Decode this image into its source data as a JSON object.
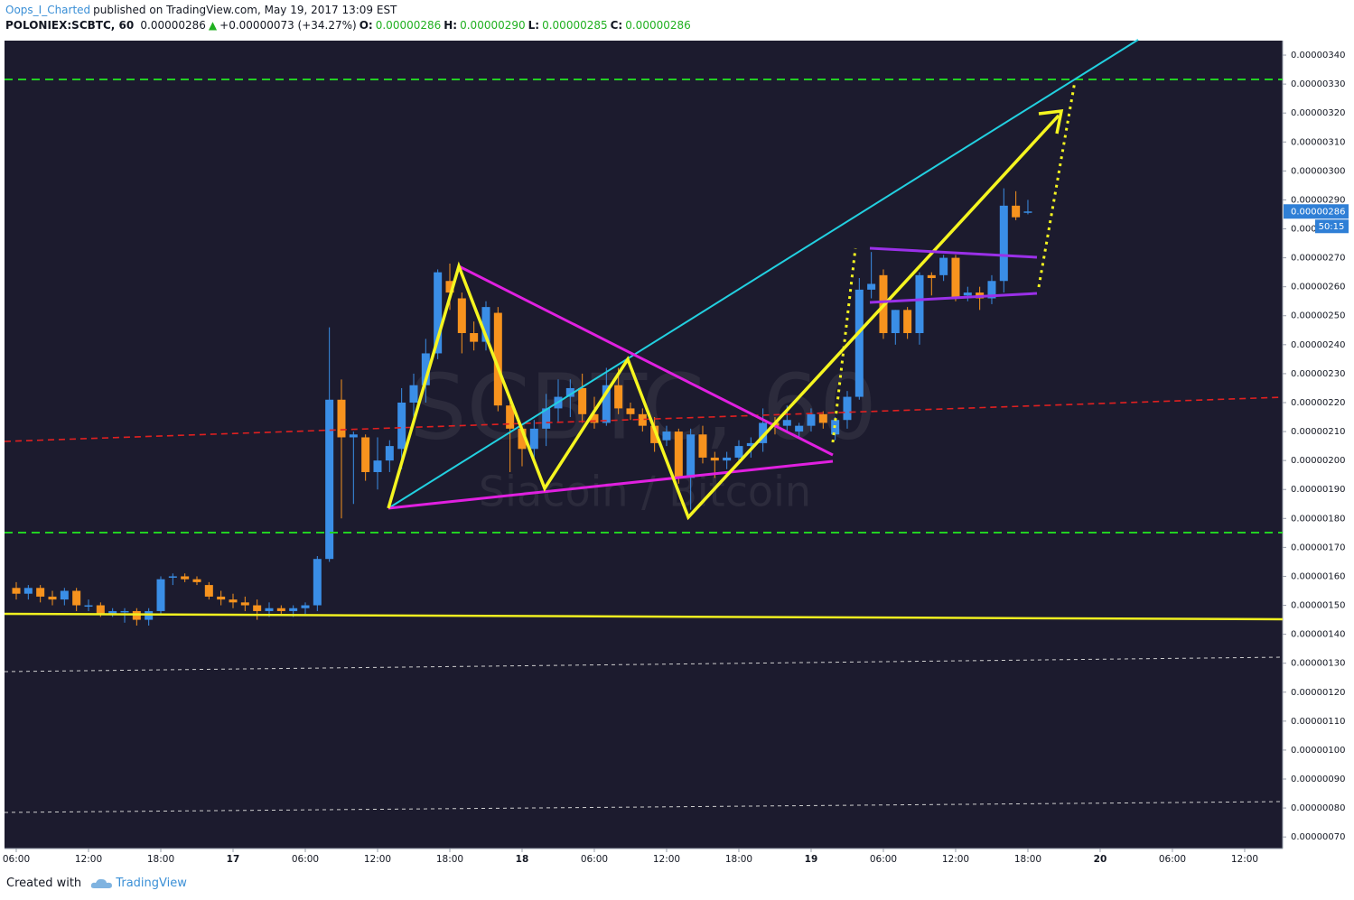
{
  "header": {
    "author": "Oops_I_Charted",
    "published": "published on TradingView.com, May 19, 2017 13:09 EST",
    "symbol": "POLONIEX:SCBTC, 60",
    "last": "0.00000286",
    "arrow": "▲",
    "change": "+0.00000073 (+34.27%)",
    "o_label": "O:",
    "o": "0.00000286",
    "h_label": "H:",
    "h": "0.00000290",
    "l_label": "L:",
    "l": "0.00000285",
    "c_label": "C:",
    "c": "0.00000286"
  },
  "footer": {
    "created": "Created with",
    "brand": "TradingView"
  },
  "chart_data": {
    "type": "candlestick",
    "watermark_symbol": "SCBTC, 60",
    "watermark_name": "Siacoin / Bitcoin",
    "up_color": "#3a8ee6",
    "down_color": "#f7931e",
    "categories": [
      "06:00",
      null,
      null,
      null,
      null,
      null,
      "12:00",
      null,
      null,
      null,
      null,
      null,
      "18:00",
      null,
      null,
      null,
      null,
      null,
      "17",
      null,
      null,
      null,
      null,
      null,
      "06:00",
      null,
      null,
      null,
      null,
      null,
      "12:00",
      null,
      null,
      null,
      null,
      null,
      "18:00",
      null,
      null,
      null,
      null,
      null,
      "18",
      null,
      null,
      null,
      null,
      null,
      "06:00",
      null,
      null,
      null,
      null,
      null,
      "12:00",
      null,
      null,
      null,
      null,
      null,
      "18:00",
      null,
      null,
      null,
      null,
      null,
      "19",
      null,
      null,
      null,
      null,
      null,
      "06:00",
      null,
      null,
      null,
      null,
      null,
      "12:00",
      null,
      null,
      null,
      null,
      null,
      "18:00",
      null,
      null,
      null,
      null,
      null,
      "20",
      null,
      null,
      null,
      null,
      null,
      "06:00",
      null,
      null,
      null,
      null,
      null,
      "12:00",
      null
    ],
    "open": [
      1.56e-06,
      1.54e-06,
      1.56e-06,
      1.53e-06,
      1.52e-06,
      1.55e-06,
      1.5e-06,
      1.5e-06,
      1.47e-06,
      1.48e-06,
      1.48e-06,
      1.45e-06,
      1.48e-06,
      1.6e-06,
      1.6e-06,
      1.59e-06,
      1.57e-06,
      1.53e-06,
      1.52e-06,
      1.51e-06,
      1.5e-06,
      1.48e-06,
      1.49e-06,
      1.48e-06,
      1.49e-06,
      1.5e-06,
      1.66e-06,
      2.21e-06,
      2.08e-06,
      2.08e-06,
      1.96e-06,
      2e-06,
      2.04e-06,
      2.2e-06,
      2.26e-06,
      2.37e-06,
      2.62e-06,
      2.56e-06,
      2.44e-06,
      2.41e-06,
      2.51e-06,
      2.19e-06,
      2.11e-06,
      2.04e-06,
      2.11e-06,
      2.18e-06,
      2.22e-06,
      2.25e-06,
      2.16e-06,
      2.13e-06,
      2.26e-06,
      2.18e-06,
      2.16e-06,
      2.12e-06,
      2.07e-06,
      2.1e-06,
      1.94e-06,
      2.09e-06,
      2.01e-06,
      2e-06,
      2.01e-06,
      2.05e-06,
      2.06e-06,
      2.13e-06,
      2.12e-06,
      2.1e-06,
      2.12e-06,
      2.16e-06,
      2.09e-06,
      2.14e-06,
      2.22e-06,
      2.59e-06,
      2.64e-06,
      2.44e-06,
      2.52e-06,
      2.44e-06,
      2.64e-06,
      2.64e-06,
      2.7e-06,
      2.57e-06,
      2.58e-06,
      2.56e-06,
      2.62e-06,
      2.88e-06,
      2.86e-06,
      null,
      null,
      null,
      null,
      null,
      null,
      null,
      null,
      null,
      null,
      null,
      null,
      null,
      null,
      null,
      null,
      null,
      null,
      null
    ],
    "high": [
      1.58e-06,
      1.57e-06,
      1.57e-06,
      1.55e-06,
      1.56e-06,
      1.56e-06,
      1.52e-06,
      1.51e-06,
      1.49e-06,
      1.49e-06,
      1.49e-06,
      1.49e-06,
      1.6e-06,
      1.61e-06,
      1.61e-06,
      1.6e-06,
      1.58e-06,
      1.55e-06,
      1.54e-06,
      1.53e-06,
      1.52e-06,
      1.51e-06,
      1.5e-06,
      1.5e-06,
      1.51e-06,
      1.67e-06,
      2.46e-06,
      2.28e-06,
      2.1e-06,
      2.09e-06,
      2.08e-06,
      2.07e-06,
      2.25e-06,
      2.3e-06,
      2.42e-06,
      2.66e-06,
      2.68e-06,
      2.58e-06,
      2.48e-06,
      2.55e-06,
      2.53e-06,
      2.21e-06,
      2.12e-06,
      2.14e-06,
      2.23e-06,
      2.28e-06,
      2.28e-06,
      2.3e-06,
      2.22e-06,
      2.32e-06,
      2.32e-06,
      2.2e-06,
      2.18e-06,
      2.15e-06,
      2.12e-06,
      2.11e-06,
      2.11e-06,
      2.12e-06,
      2.03e-06,
      2.03e-06,
      2.07e-06,
      2.08e-06,
      2.18e-06,
      2.15e-06,
      2.19e-06,
      2.13e-06,
      2.18e-06,
      2.17e-06,
      2.15e-06,
      2.24e-06,
      2.63e-06,
      2.72e-06,
      2.66e-06,
      2.52e-06,
      2.53e-06,
      2.65e-06,
      2.65e-06,
      2.71e-06,
      2.71e-06,
      2.6e-06,
      2.6e-06,
      2.64e-06,
      2.94e-06,
      2.93e-06,
      2.9e-06,
      null,
      null,
      null,
      null,
      null,
      null,
      null,
      null,
      null,
      null,
      null,
      null,
      null,
      null,
      null,
      null,
      null,
      null,
      null
    ],
    "low": [
      1.52e-06,
      1.52e-06,
      1.51e-06,
      1.5e-06,
      1.5e-06,
      1.48e-06,
      1.48e-06,
      1.46e-06,
      1.46e-06,
      1.44e-06,
      1.43e-06,
      1.43e-06,
      1.47e-06,
      1.57e-06,
      1.58e-06,
      1.57e-06,
      1.52e-06,
      1.5e-06,
      1.49e-06,
      1.48e-06,
      1.45e-06,
      1.46e-06,
      1.47e-06,
      1.46e-06,
      1.47e-06,
      1.48e-06,
      1.65e-06,
      1.8e-06,
      1.85e-06,
      1.93e-06,
      1.9e-06,
      1.96e-06,
      1.97e-06,
      2.15e-06,
      2.2e-06,
      2.35e-06,
      2.52e-06,
      2.37e-06,
      2.38e-06,
      2.38e-06,
      2.17e-06,
      1.96e-06,
      1.98e-06,
      1.99e-06,
      2.05e-06,
      2.13e-06,
      2.15e-06,
      2.13e-06,
      2.11e-06,
      2.12e-06,
      2.16e-06,
      2.14e-06,
      2.1e-06,
      2.03e-06,
      2.05e-06,
      1.92e-06,
      1.83e-06,
      1.99e-06,
      1.94e-06,
      1.97e-06,
      2e-06,
      2.01e-06,
      2.03e-06,
      2.09e-06,
      2.1e-06,
      2.08e-06,
      2.1e-06,
      2.11e-06,
      2.07e-06,
      2.11e-06,
      2.21e-06,
      2.56e-06,
      2.42e-06,
      2.4e-06,
      2.42e-06,
      2.4e-06,
      2.57e-06,
      2.62e-06,
      2.55e-06,
      2.55e-06,
      2.52e-06,
      2.54e-06,
      2.58e-06,
      2.83e-06,
      2.85e-06,
      null,
      null,
      null,
      null,
      null,
      null,
      null,
      null,
      null,
      null,
      null,
      null,
      null,
      null,
      null,
      null,
      null,
      null,
      null
    ],
    "close": [
      1.54e-06,
      1.56e-06,
      1.53e-06,
      1.52e-06,
      1.55e-06,
      1.5e-06,
      1.5e-06,
      1.47e-06,
      1.48e-06,
      1.48e-06,
      1.45e-06,
      1.48e-06,
      1.59e-06,
      1.6e-06,
      1.59e-06,
      1.58e-06,
      1.53e-06,
      1.52e-06,
      1.51e-06,
      1.5e-06,
      1.48e-06,
      1.49e-06,
      1.48e-06,
      1.49e-06,
      1.5e-06,
      1.66e-06,
      2.21e-06,
      2.08e-06,
      2.09e-06,
      1.96e-06,
      2e-06,
      2.05e-06,
      2.2e-06,
      2.26e-06,
      2.37e-06,
      2.65e-06,
      2.58e-06,
      2.44e-06,
      2.41e-06,
      2.53e-06,
      2.19e-06,
      2.11e-06,
      2.04e-06,
      2.11e-06,
      2.18e-06,
      2.22e-06,
      2.25e-06,
      2.16e-06,
      2.13e-06,
      2.26e-06,
      2.18e-06,
      2.16e-06,
      2.12e-06,
      2.06e-06,
      2.1e-06,
      1.94e-06,
      2.09e-06,
      2.01e-06,
      2e-06,
      2.01e-06,
      2.05e-06,
      2.06e-06,
      2.13e-06,
      2.12e-06,
      2.14e-06,
      2.12e-06,
      2.16e-06,
      2.13e-06,
      2.14e-06,
      2.22e-06,
      2.59e-06,
      2.61e-06,
      2.44e-06,
      2.52e-06,
      2.44e-06,
      2.64e-06,
      2.63e-06,
      2.7e-06,
      2.56e-06,
      2.58e-06,
      2.56e-06,
      2.62e-06,
      2.88e-06,
      2.84e-06,
      2.86e-06,
      null,
      null,
      null,
      null,
      null,
      null,
      null,
      null,
      null,
      null,
      null,
      null,
      null,
      null,
      null,
      null,
      null,
      null,
      null
    ],
    "ylim": [
      6.6e-07,
      3.45e-06
    ],
    "yticks": [
      {
        "value": 7e-07,
        "label": "0.00000070"
      },
      {
        "value": 8e-07,
        "label": "0.00000080"
      },
      {
        "value": 9e-07,
        "label": "0.00000090"
      },
      {
        "value": 1e-06,
        "label": "0.00000100"
      },
      {
        "value": 1.1e-06,
        "label": "0.00000110"
      },
      {
        "value": 1.2e-06,
        "label": "0.00000120"
      },
      {
        "value": 1.3e-06,
        "label": "0.00000130"
      },
      {
        "value": 1.4e-06,
        "label": "0.00000140"
      },
      {
        "value": 1.5e-06,
        "label": "0.00000150"
      },
      {
        "value": 1.6e-06,
        "label": "0.00000160"
      },
      {
        "value": 1.7e-06,
        "label": "0.00000170"
      },
      {
        "value": 1.8e-06,
        "label": "0.00000180"
      },
      {
        "value": 1.9e-06,
        "label": "0.00000190"
      },
      {
        "value": 2e-06,
        "label": "0.00000200"
      },
      {
        "value": 2.1e-06,
        "label": "0.00000210"
      },
      {
        "value": 2.2e-06,
        "label": "0.00000220"
      },
      {
        "value": 2.3e-06,
        "label": "0.00000230"
      },
      {
        "value": 2.4e-06,
        "label": "0.00000240"
      },
      {
        "value": 2.5e-06,
        "label": "0.00000250"
      },
      {
        "value": 2.6e-06,
        "label": "0.00000260"
      },
      {
        "value": 2.7e-06,
        "label": "0.00000270"
      },
      {
        "value": 2.8e-06,
        "label": "0.00000280"
      },
      {
        "value": 2.9e-06,
        "label": "0.00000290"
      },
      {
        "value": 3e-06,
        "label": "0.00000300"
      },
      {
        "value": 3.1e-06,
        "label": "0.00000310"
      },
      {
        "value": 3.2e-06,
        "label": "0.00000320"
      },
      {
        "value": 3.3e-06,
        "label": "0.00000330"
      },
      {
        "value": 3.4e-06,
        "label": "0.00000340"
      }
    ],
    "price_label": "0.00000286",
    "countdown": "50:15"
  }
}
